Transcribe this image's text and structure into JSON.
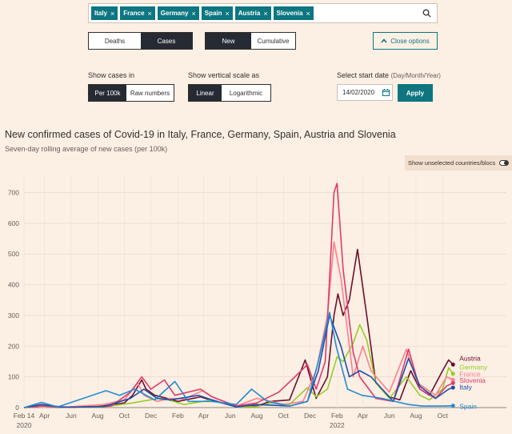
{
  "filter": {
    "chips": [
      "Italy",
      "France",
      "Germany",
      "Spain",
      "Austria",
      "Slovenia"
    ],
    "remove_glyph": "×",
    "search_icon": "search-icon"
  },
  "metric_toggle": {
    "options": [
      "Deaths",
      "Cases"
    ],
    "selected": "Cases"
  },
  "mode_toggle": {
    "options": [
      "New",
      "Cumulative"
    ],
    "selected": "New"
  },
  "close_options": {
    "label": "Close options",
    "icon": "chevron-up-icon"
  },
  "cases_in": {
    "label": "Show cases in",
    "options": [
      "Per 100k",
      "Raw numbers"
    ],
    "selected": "Per 100k"
  },
  "scale": {
    "label": "Show vertical scale as",
    "options": [
      "Linear",
      "Logarithmic"
    ],
    "selected": "Linear"
  },
  "start_date": {
    "label": "Select start date",
    "hint": "(Day/Month/Year)",
    "value": "14/02/2020",
    "icon": "calendar-icon",
    "apply_label": "Apply"
  },
  "chart_title": "New confirmed cases of Covid-19 in Italy, France, Germany, Spain, Austria and Slovenia",
  "chart_subtitle": "Seven-day rolling average of new cases (per 100k)",
  "show_unselected": "Show unselected countries/blocs",
  "chart_data": {
    "type": "line",
    "title": "New confirmed cases of Covid-19 in Italy, France, Germany, Spain, Austria and Slovenia",
    "subtitle": "Seven-day rolling average of new cases (per 100k)",
    "x_tick_labels": [
      "Feb 14",
      "Apr",
      "Jun",
      "Aug",
      "Oct",
      "Dec",
      "Feb",
      "Apr",
      "Jun",
      "Aug",
      "Oct",
      "Dec",
      "Feb",
      "Apr",
      "Jun",
      "Aug",
      "Oct"
    ],
    "x_year_labels": [
      {
        "label": "2020",
        "at": "2020-02-14"
      },
      {
        "label": "2022",
        "at": "2022-02-01"
      }
    ],
    "x_range": [
      "2020-02-14",
      "2022-11-10"
    ],
    "ylim": [
      0,
      730
    ],
    "y_ticks": [
      0,
      100,
      200,
      300,
      400,
      500,
      600,
      700
    ],
    "grid": true,
    "series": [
      {
        "name": "Austria",
        "color": "#6b0f2c",
        "points": [
          [
            "2020-02-14",
            0
          ],
          [
            "2020-03-25",
            10
          ],
          [
            "2020-05-01",
            1
          ],
          [
            "2020-08-01",
            3
          ],
          [
            "2020-10-01",
            15
          ],
          [
            "2020-10-20",
            40
          ],
          [
            "2020-11-10",
            90
          ],
          [
            "2020-11-20",
            60
          ],
          [
            "2020-12-10",
            40
          ],
          [
            "2021-01-01",
            32
          ],
          [
            "2021-02-01",
            20
          ],
          [
            "2021-03-25",
            35
          ],
          [
            "2021-04-15",
            25
          ],
          [
            "2021-06-15",
            3
          ],
          [
            "2021-08-01",
            5
          ],
          [
            "2021-09-01",
            20
          ],
          [
            "2021-10-15",
            25
          ],
          [
            "2021-11-20",
            155
          ],
          [
            "2021-12-15",
            30
          ],
          [
            "2022-01-10",
            100
          ],
          [
            "2022-01-25",
            300
          ],
          [
            "2022-02-03",
            370
          ],
          [
            "2022-02-15",
            300
          ],
          [
            "2022-03-01",
            350
          ],
          [
            "2022-03-20",
            515
          ],
          [
            "2022-04-10",
            300
          ],
          [
            "2022-05-01",
            80
          ],
          [
            "2022-06-01",
            35
          ],
          [
            "2022-06-25",
            25
          ],
          [
            "2022-07-20",
            120
          ],
          [
            "2022-08-10",
            60
          ],
          [
            "2022-09-01",
            40
          ],
          [
            "2022-10-01",
            120
          ],
          [
            "2022-10-15",
            155
          ],
          [
            "2022-10-25",
            140
          ]
        ],
        "label": "Austria",
        "label_y": 160
      },
      {
        "name": "Germany",
        "color": "#96cc28",
        "points": [
          [
            "2020-02-14",
            0
          ],
          [
            "2020-04-01",
            8
          ],
          [
            "2020-05-15",
            1
          ],
          [
            "2020-08-15",
            2
          ],
          [
            "2020-10-20",
            15
          ],
          [
            "2020-12-20",
            30
          ],
          [
            "2021-01-10",
            25
          ],
          [
            "2021-02-15",
            10
          ],
          [
            "2021-04-20",
            25
          ],
          [
            "2021-06-15",
            2
          ],
          [
            "2021-08-01",
            3
          ],
          [
            "2021-09-01",
            15
          ],
          [
            "2021-10-15",
            10
          ],
          [
            "2021-11-25",
            65
          ],
          [
            "2021-12-15",
            35
          ],
          [
            "2022-01-10",
            60
          ],
          [
            "2022-02-01",
            165
          ],
          [
            "2022-02-15",
            150
          ],
          [
            "2022-03-10",
            210
          ],
          [
            "2022-03-25",
            270
          ],
          [
            "2022-04-10",
            220
          ],
          [
            "2022-05-01",
            80
          ],
          [
            "2022-06-01",
            30
          ],
          [
            "2022-07-10",
            100
          ],
          [
            "2022-08-10",
            40
          ],
          [
            "2022-09-01",
            25
          ],
          [
            "2022-10-01",
            60
          ],
          [
            "2022-10-15",
            130
          ],
          [
            "2022-10-25",
            110
          ]
        ],
        "label": "Germany",
        "label_y": 132
      },
      {
        "name": "France",
        "color": "#ff7f8a",
        "points": [
          [
            "2020-02-14",
            0
          ],
          [
            "2020-03-30",
            6
          ],
          [
            "2020-05-15",
            1
          ],
          [
            "2020-08-15",
            10
          ],
          [
            "2020-10-01",
            25
          ],
          [
            "2020-11-01",
            80
          ],
          [
            "2020-11-15",
            40
          ],
          [
            "2020-12-15",
            20
          ],
          [
            "2021-01-15",
            30
          ],
          [
            "2021-02-15",
            28
          ],
          [
            "2021-03-30",
            55
          ],
          [
            "2021-04-20",
            35
          ],
          [
            "2021-06-15",
            5
          ],
          [
            "2021-08-01",
            30
          ],
          [
            "2021-08-20",
            25
          ],
          [
            "2021-10-01",
            10
          ],
          [
            "2021-11-15",
            20
          ],
          [
            "2021-12-15",
            120
          ],
          [
            "2022-01-10",
            300
          ],
          [
            "2022-01-25",
            540
          ],
          [
            "2022-02-10",
            420
          ],
          [
            "2022-03-10",
            100
          ],
          [
            "2022-04-01",
            200
          ],
          [
            "2022-04-20",
            120
          ],
          [
            "2022-06-01",
            50
          ],
          [
            "2022-07-10",
            190
          ],
          [
            "2022-08-05",
            80
          ],
          [
            "2022-09-15",
            40
          ],
          [
            "2022-10-10",
            100
          ],
          [
            "2022-10-25",
            90
          ]
        ],
        "label": "France",
        "label_y": 110
      },
      {
        "name": "Slovenia",
        "color": "#e03a6b",
        "points": [
          [
            "2020-02-14",
            0
          ],
          [
            "2020-03-25",
            5
          ],
          [
            "2020-06-01",
            1
          ],
          [
            "2020-09-01",
            5
          ],
          [
            "2020-10-15",
            50
          ],
          [
            "2020-11-10",
            100
          ],
          [
            "2020-12-01",
            60
          ],
          [
            "2021-01-01",
            90
          ],
          [
            "2021-01-25",
            40
          ],
          [
            "2021-03-25",
            60
          ],
          [
            "2021-04-20",
            35
          ],
          [
            "2021-06-15",
            5
          ],
          [
            "2021-08-01",
            15
          ],
          [
            "2021-09-20",
            50
          ],
          [
            "2021-10-20",
            90
          ],
          [
            "2021-11-25",
            140
          ],
          [
            "2021-12-15",
            60
          ],
          [
            "2022-01-05",
            150
          ],
          [
            "2022-01-25",
            700
          ],
          [
            "2022-02-01",
            730
          ],
          [
            "2022-02-15",
            450
          ],
          [
            "2022-03-10",
            180
          ],
          [
            "2022-03-25",
            100
          ],
          [
            "2022-05-01",
            30
          ],
          [
            "2022-06-10",
            20
          ],
          [
            "2022-07-15",
            190
          ],
          [
            "2022-08-10",
            60
          ],
          [
            "2022-09-15",
            30
          ],
          [
            "2022-10-10",
            70
          ],
          [
            "2022-10-25",
            80
          ]
        ],
        "label": "Slovenia",
        "label_y": 88
      },
      {
        "name": "Italy",
        "color": "#1c4eab",
        "points": [
          [
            "2020-02-14",
            0
          ],
          [
            "2020-03-25",
            10
          ],
          [
            "2020-05-15",
            1
          ],
          [
            "2020-08-15",
            3
          ],
          [
            "2020-10-15",
            30
          ],
          [
            "2020-11-15",
            60
          ],
          [
            "2020-12-15",
            30
          ],
          [
            "2021-01-15",
            25
          ],
          [
            "2021-03-20",
            40
          ],
          [
            "2021-04-20",
            25
          ],
          [
            "2021-06-15",
            2
          ],
          [
            "2021-08-01",
            10
          ],
          [
            "2021-09-01",
            8
          ],
          [
            "2021-10-15",
            5
          ],
          [
            "2021-11-25",
            20
          ],
          [
            "2021-12-20",
            120
          ],
          [
            "2022-01-15",
            300
          ],
          [
            "2022-02-10",
            200
          ],
          [
            "2022-03-01",
            100
          ],
          [
            "2022-03-25",
            120
          ],
          [
            "2022-04-20",
            100
          ],
          [
            "2022-06-10",
            20
          ],
          [
            "2022-07-15",
            160
          ],
          [
            "2022-08-10",
            70
          ],
          [
            "2022-09-15",
            30
          ],
          [
            "2022-10-15",
            60
          ],
          [
            "2022-10-25",
            65
          ]
        ],
        "label": "Italy",
        "label_y": 66
      },
      {
        "name": "Spain",
        "color": "#238bd1",
        "points": [
          [
            "2020-02-14",
            0
          ],
          [
            "2020-03-25",
            17
          ],
          [
            "2020-05-01",
            2
          ],
          [
            "2020-08-20",
            55
          ],
          [
            "2020-09-20",
            40
          ],
          [
            "2020-10-25",
            60
          ],
          [
            "2020-12-10",
            25
          ],
          [
            "2021-01-25",
            85
          ],
          [
            "2021-02-25",
            20
          ],
          [
            "2021-04-20",
            20
          ],
          [
            "2021-06-15",
            10
          ],
          [
            "2021-07-20",
            60
          ],
          [
            "2021-08-25",
            20
          ],
          [
            "2021-10-15",
            5
          ],
          [
            "2021-11-25",
            20
          ],
          [
            "2021-12-20",
            150
          ],
          [
            "2022-01-15",
            310
          ],
          [
            "2022-01-30",
            200
          ],
          [
            "2022-02-25",
            60
          ],
          [
            "2022-03-30",
            40
          ],
          [
            "2022-05-15",
            30
          ],
          [
            "2022-07-15",
            10
          ],
          [
            "2022-08-15",
            5
          ],
          [
            "2022-10-01",
            5
          ],
          [
            "2022-10-25",
            6
          ]
        ],
        "label": "Spain",
        "label_y": 4
      }
    ]
  }
}
